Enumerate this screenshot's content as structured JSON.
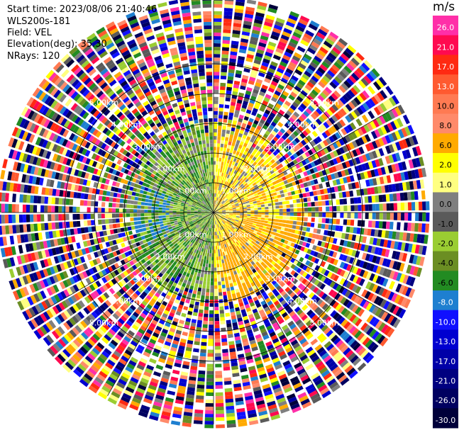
{
  "header": {
    "start_time": "Start time: 2023/08/06 21:40:46",
    "instrument": "WLS200s-181",
    "field": "Field: VEL",
    "elevation": "Elevation(deg): 35.30",
    "nrays": "NRays: 120"
  },
  "colorbar": {
    "unit": "m/s",
    "entries": [
      {
        "label": "26.0",
        "color": "#ff2fa8"
      },
      {
        "label": "21.0",
        "color": "#ff0a50"
      },
      {
        "label": "17.0",
        "color": "#ff2a12"
      },
      {
        "label": "13.0",
        "color": "#ff5a30"
      },
      {
        "label": "10.0",
        "color": "#ff7a52"
      },
      {
        "label": "8.0",
        "color": "#ff8a6a"
      },
      {
        "label": "6.0",
        "color": "#ffaa00"
      },
      {
        "label": "2.0",
        "color": "#ffff00"
      },
      {
        "label": "1.0",
        "color": "#ffff80"
      },
      {
        "label": "0.0",
        "color": "#7f7f7f"
      },
      {
        "label": "-1.0",
        "color": "#5a5a5a"
      },
      {
        "label": "-2.0",
        "color": "#9acd32"
      },
      {
        "label": "-4.0",
        "color": "#6b8e23"
      },
      {
        "label": "-6.0",
        "color": "#228b22"
      },
      {
        "label": "-8.0",
        "color": "#1e7fd0"
      },
      {
        "label": "-10.0",
        "color": "#1010ff"
      },
      {
        "label": "-13.0",
        "color": "#0000d0"
      },
      {
        "label": "-17.0",
        "color": "#0000a8"
      },
      {
        "label": "-21.0",
        "color": "#000080"
      },
      {
        "label": "-26.0",
        "color": "#000060"
      },
      {
        "label": "-30.0",
        "color": "#00003a"
      }
    ]
  },
  "chart_data": {
    "type": "heatmap",
    "field": "VEL",
    "nrays": 120,
    "range_rings_km": [
      1.0,
      2.0,
      3.0,
      4.0,
      5.0
    ],
    "ring_labels": [
      "1.00km",
      "2.00km",
      "3.00km",
      "4.00km",
      "5.00km"
    ],
    "velocity_pattern": [
      {
        "region": "east",
        "azimuth_deg": [
          0,
          180
        ],
        "range_km": [
          0,
          3.0
        ],
        "values_ms": [
          2.0,
          6.0
        ]
      },
      {
        "region": "west",
        "azimuth_deg": [
          180,
          360
        ],
        "range_km": [
          0,
          3.0
        ],
        "values_ms": [
          -2.0,
          -8.0
        ]
      },
      {
        "region": "outer",
        "range_km": [
          3.0,
          7.2
        ],
        "description": "noise"
      }
    ]
  }
}
